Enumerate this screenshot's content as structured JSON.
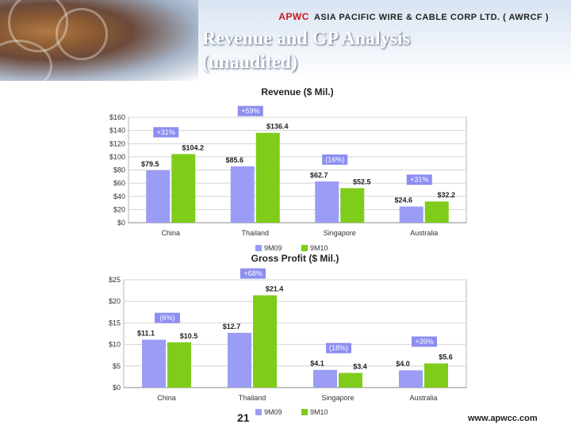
{
  "slide": {
    "title_line1": "Revenue and GP Analysis",
    "title_line2": "(unaudited)",
    "company": "ASIA PACIFIC WIRE & CABLE CORP LTD. ( AWRCF )",
    "logo_text": "APWC",
    "page_number": "21",
    "website": "www.apwcc.com"
  },
  "colors": {
    "s9M09": "#9b9cf5",
    "s9M10": "#7fcc1a",
    "change_label_bg": "#8c8ef0"
  },
  "chart_data": [
    {
      "type": "bar",
      "title": "Revenue ($ Mil.)",
      "categories": [
        "China",
        "Thailand",
        "Singapore",
        "Australia"
      ],
      "series": [
        {
          "name": "9M09",
          "values": [
            79.5,
            85.6,
            62.7,
            24.6
          ]
        },
        {
          "name": "9M10",
          "values": [
            104.2,
            136.4,
            52.5,
            32.2
          ]
        }
      ],
      "value_labels": {
        "9M09": [
          "$79.5",
          "$85.6",
          "$62.7",
          "$24.6"
        ],
        "9M10": [
          "$104.2",
          "$136.4",
          "$52.5",
          "$32.2"
        ]
      },
      "changes": [
        "+31%",
        "+59%",
        "(16%)",
        "+31%"
      ],
      "ylim": [
        0,
        160
      ],
      "yticks": [
        0,
        20,
        40,
        60,
        80,
        100,
        120,
        140,
        160
      ],
      "ytick_labels": [
        "$0",
        "$20",
        "$40",
        "$60",
        "$80",
        "$100",
        "$120",
        "$140",
        "$160"
      ],
      "legend": "bottom",
      "grid": true
    },
    {
      "type": "bar",
      "title": "Gross Profit ($ Mil.)",
      "categories": [
        "China",
        "Thailand",
        "Singapore",
        "Australia"
      ],
      "series": [
        {
          "name": "9M09",
          "values": [
            11.1,
            12.7,
            4.1,
            4.0
          ]
        },
        {
          "name": "9M10",
          "values": [
            10.5,
            21.4,
            3.4,
            5.6
          ]
        }
      ],
      "value_labels": {
        "9M09": [
          "$11.1",
          "$12.7",
          "$4.1",
          "$4.0"
        ],
        "9M10": [
          "$10.5",
          "$21.4",
          "$3.4",
          "$5.6"
        ]
      },
      "changes": [
        "(6%)",
        "+68%",
        "(18%)",
        "+39%"
      ],
      "ylim": [
        0,
        25
      ],
      "yticks": [
        0,
        5,
        10,
        15,
        20,
        25
      ],
      "ytick_labels": [
        "$0",
        "$5",
        "$10",
        "$15",
        "$20",
        "$25"
      ],
      "legend": "bottom",
      "grid": true
    }
  ]
}
